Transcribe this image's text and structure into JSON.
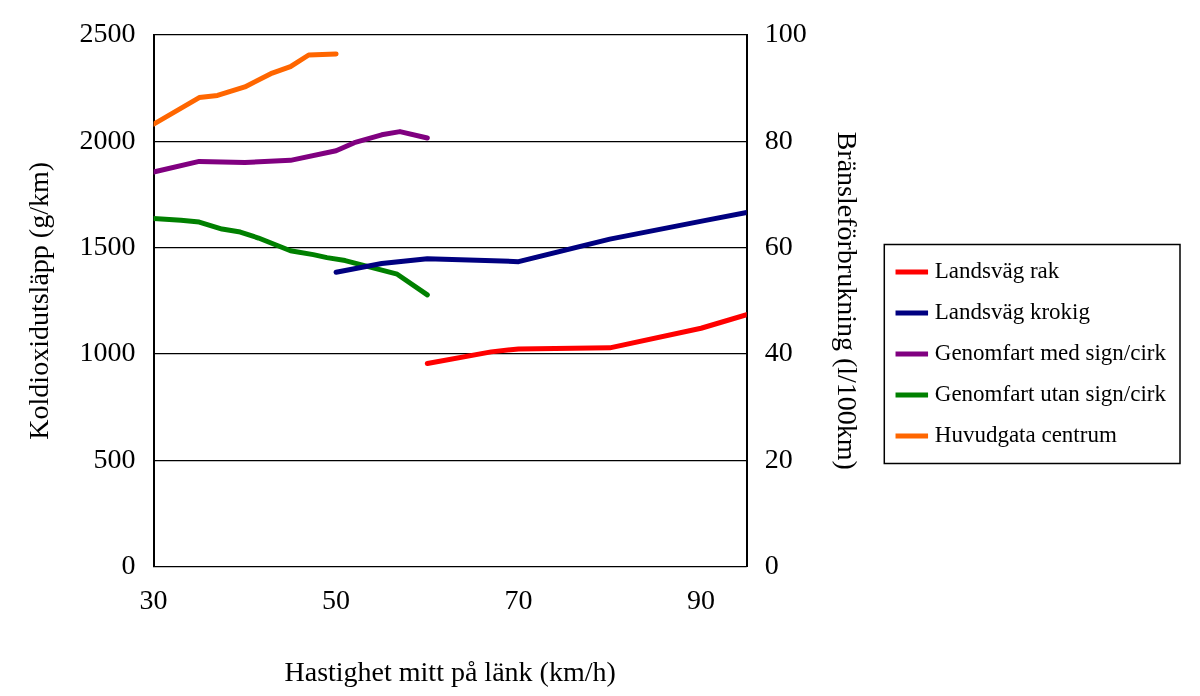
{
  "chart_data": {
    "type": "line",
    "xlabel": "Hastighet mitt på länk (km/h)",
    "ylabel": "Koldioxidutsläpp (g/km)",
    "y2label": "Bränsleförbrukning (l/100km)",
    "xlim": [
      30,
      95
    ],
    "xticks": [
      30,
      50,
      70,
      90
    ],
    "ylim": [
      0,
      2500
    ],
    "yticks": [
      0,
      500,
      1000,
      1500,
      2000,
      2500
    ],
    "y2lim": [
      0,
      100
    ],
    "y2ticks": [
      0,
      20,
      40,
      60,
      80,
      100
    ],
    "grid": "y",
    "legend": "right",
    "marker": "none",
    "line_style": "solid",
    "series": [
      {
        "name": "Landsväg rak",
        "color": "#ff0000",
        "x": [
          60,
          67,
          70,
          80,
          90,
          95
        ],
        "values": [
          955,
          1010,
          1024,
          1029,
          1121,
          1185
        ]
      },
      {
        "name": "Landsväg krokig",
        "color": "#000080",
        "x": [
          50,
          55,
          60,
          70,
          80,
          90.5,
          95
        ],
        "values": [
          1384,
          1425,
          1448,
          1434,
          1540,
          1628,
          1665
        ]
      },
      {
        "name": "Genomfart med sign/cirk",
        "color": "#800080",
        "x": [
          30,
          35,
          40,
          45,
          50,
          52,
          55,
          57,
          60
        ],
        "values": [
          1855,
          1905,
          1900,
          1910,
          1955,
          1993,
          2030,
          2045,
          2015
        ]
      },
      {
        "name": "Genomfart utan sign/cirk",
        "color": "#008000",
        "x": [
          30,
          33,
          35,
          37.5,
          39.5,
          41.5,
          45,
          47.5,
          49,
          51,
          56.7,
          60
        ],
        "values": [
          1637,
          1628,
          1620,
          1587,
          1573,
          1545,
          1485,
          1467,
          1453,
          1439,
          1375,
          1278
        ]
      },
      {
        "name": "Huvudgata centrum",
        "color": "#ff6600",
        "x": [
          30,
          35,
          37,
          40,
          43,
          45,
          47,
          50
        ],
        "values": [
          2080,
          2205,
          2215,
          2255,
          2320,
          2350,
          2405,
          2410
        ]
      }
    ]
  }
}
